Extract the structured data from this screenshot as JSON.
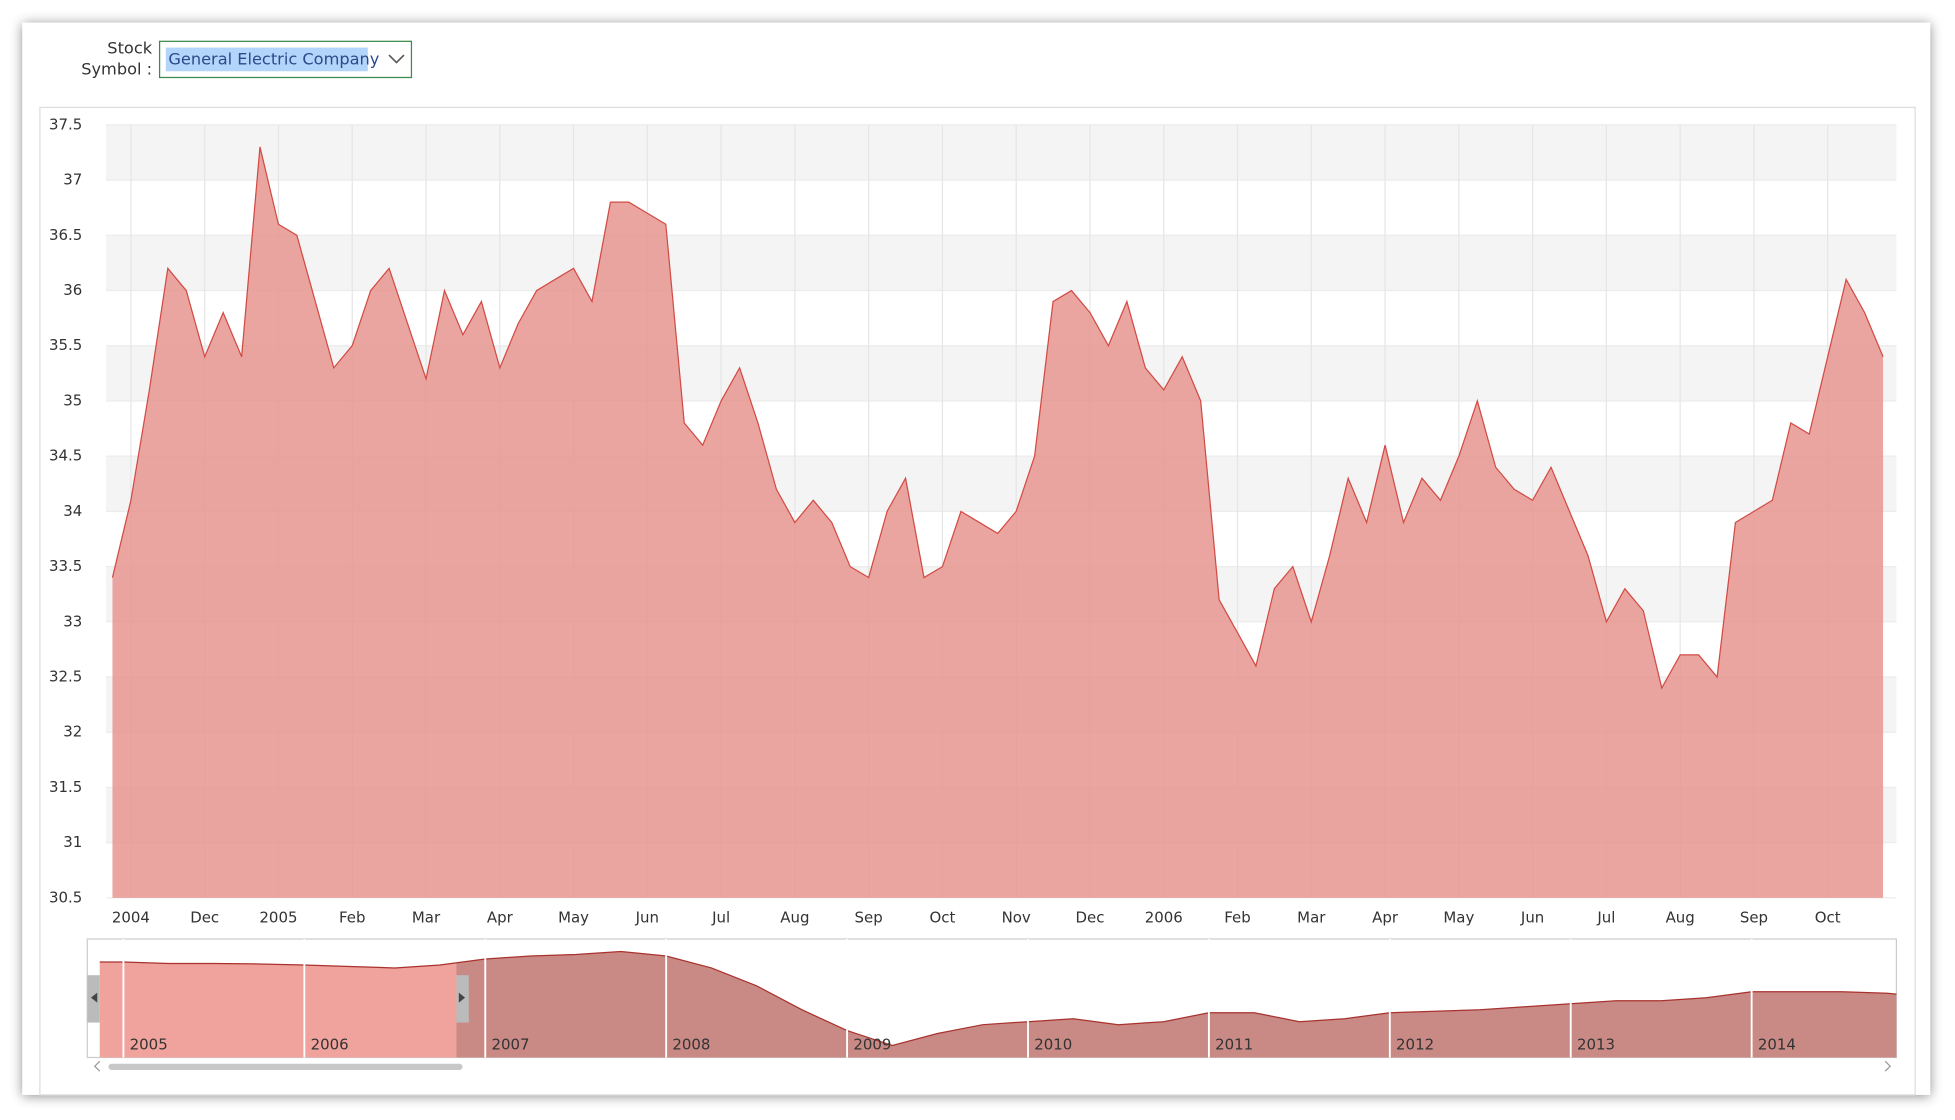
{
  "form": {
    "label_lines": [
      "Stock",
      "Symbol :"
    ],
    "selected": "General Electric Company"
  },
  "chart_data": [
    {
      "type": "area",
      "categories": [
        null,
        "2004",
        null,
        null,
        null,
        "Dec",
        null,
        null,
        null,
        "2005",
        null,
        null,
        null,
        "Feb",
        null,
        null,
        null,
        "Mar",
        null,
        null,
        null,
        "Apr",
        null,
        null,
        null,
        "May",
        null,
        null,
        null,
        "Jun",
        null,
        null,
        null,
        "Jul",
        null,
        null,
        null,
        "Aug",
        null,
        null,
        null,
        "Sep",
        null,
        null,
        null,
        "Oct",
        null,
        null,
        null,
        "Nov",
        null,
        null,
        null,
        "Dec",
        null,
        null,
        null,
        "2006",
        null,
        null,
        null,
        "Feb",
        null,
        null,
        null,
        "Mar",
        null,
        null,
        null,
        "Apr",
        null,
        null,
        null,
        "May",
        null,
        null,
        null,
        "Jun",
        null,
        null,
        null,
        "Jul",
        null,
        null,
        null,
        "Aug",
        null,
        null,
        null,
        "Sep",
        null,
        null,
        null,
        "Oct",
        null,
        null,
        null
      ],
      "values": [
        33.4,
        34.1,
        35.1,
        36.2,
        36.0,
        35.4,
        35.8,
        35.4,
        37.3,
        36.6,
        36.5,
        35.9,
        35.3,
        35.5,
        36.0,
        36.2,
        35.7,
        35.2,
        36.0,
        35.6,
        35.9,
        35.3,
        35.7,
        36.0,
        36.1,
        36.2,
        35.9,
        36.8,
        36.8,
        36.7,
        36.6,
        34.8,
        34.6,
        35.0,
        35.3,
        34.8,
        34.2,
        33.9,
        34.1,
        33.9,
        33.5,
        33.4,
        34.0,
        34.3,
        33.4,
        33.5,
        34.0,
        33.9,
        33.8,
        34.0,
        34.5,
        35.9,
        36.0,
        35.8,
        35.5,
        35.9,
        35.3,
        35.1,
        35.4,
        35.0,
        33.2,
        32.9,
        32.6,
        33.3,
        33.5,
        33.0,
        33.6,
        34.3,
        33.9,
        34.6,
        33.9,
        34.3,
        34.1,
        34.5,
        35.0,
        34.4,
        34.2,
        34.1,
        34.4,
        34.0,
        33.6,
        33.0,
        33.3,
        33.1,
        32.4,
        32.7,
        32.7,
        32.5,
        33.9,
        34.0,
        34.1,
        34.8,
        34.7,
        35.4,
        36.1,
        35.8,
        35.4
      ],
      "color": "#e8958f",
      "line_color": "#d24b45",
      "ylim": [
        30.5,
        37.5
      ],
      "yticks": [
        30.5,
        31,
        31.5,
        32,
        32.5,
        33,
        33.5,
        34,
        34.5,
        35,
        35.5,
        36,
        36.5,
        37,
        37.5
      ],
      "grid": true
    },
    {
      "type": "area",
      "categories": [
        null,
        "2005",
        null,
        null,
        null,
        "2006",
        null,
        null,
        null,
        "2007",
        null,
        null,
        null,
        "2008",
        null,
        null,
        null,
        "2009",
        null,
        null,
        null,
        "2010",
        null,
        null,
        null,
        "2011",
        null,
        null,
        null,
        "2012",
        null,
        null,
        null,
        "2013",
        null,
        null,
        null,
        "2014",
        null,
        null,
        null,
        null,
        null,
        null,
        null
      ],
      "values": [
        36,
        36,
        35.5,
        35.5,
        35.3,
        35,
        34.5,
        34,
        35,
        37,
        38,
        38.5,
        39.5,
        38,
        34,
        28,
        20,
        13,
        8,
        12,
        15,
        16,
        17,
        15,
        16,
        19,
        19,
        16,
        17,
        19,
        19.5,
        20,
        21,
        22,
        23,
        23,
        24,
        26,
        26,
        26,
        25.5,
        24,
        24.5,
        25,
        24
      ],
      "color": "#c98a86",
      "selected_color": "#f0a29c",
      "line_color": "#a8322d",
      "ylim": [
        4,
        42
      ]
    }
  ]
}
